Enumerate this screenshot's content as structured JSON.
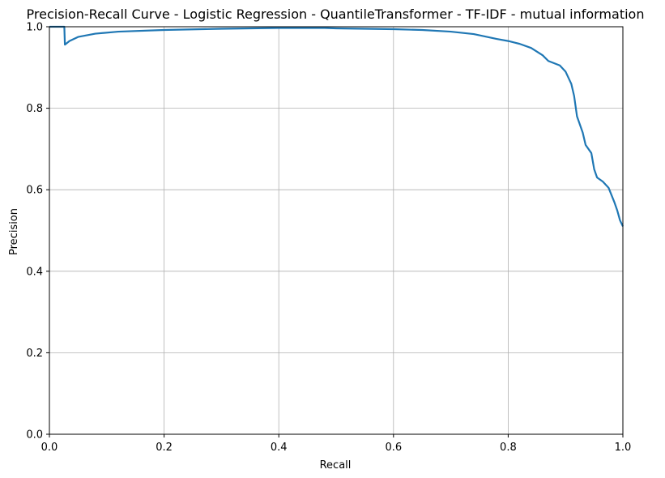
{
  "chart_data": {
    "type": "line",
    "title": "Precision-Recall Curve - Logistic Regression - QuantileTransformer - TF-IDF - mutual information",
    "xlabel": "Recall",
    "ylabel": "Precision",
    "xlim": [
      0.0,
      1.0
    ],
    "ylim": [
      0.0,
      1.0
    ],
    "grid": true,
    "xticks": [
      0.0,
      0.2,
      0.4,
      0.6,
      0.8,
      1.0
    ],
    "yticks": [
      0.0,
      0.2,
      0.4,
      0.6,
      0.8,
      1.0
    ],
    "xtick_labels": [
      "0.0",
      "0.2",
      "0.4",
      "0.6",
      "0.8",
      "1.0"
    ],
    "ytick_labels": [
      "0.0",
      "0.2",
      "0.4",
      "0.6",
      "0.8",
      "1.0"
    ],
    "series": [
      {
        "color": "#1f77b4",
        "points": [
          [
            0.0,
            1.0
          ],
          [
            0.026,
            1.0
          ],
          [
            0.027,
            0.956
          ],
          [
            0.035,
            0.965
          ],
          [
            0.05,
            0.975
          ],
          [
            0.08,
            0.983
          ],
          [
            0.12,
            0.988
          ],
          [
            0.2,
            0.992
          ],
          [
            0.3,
            0.995
          ],
          [
            0.4,
            0.997
          ],
          [
            0.48,
            0.997
          ],
          [
            0.5,
            0.996
          ],
          [
            0.6,
            0.994
          ],
          [
            0.65,
            0.992
          ],
          [
            0.7,
            0.988
          ],
          [
            0.74,
            0.982
          ],
          [
            0.76,
            0.976
          ],
          [
            0.78,
            0.97
          ],
          [
            0.8,
            0.965
          ],
          [
            0.82,
            0.958
          ],
          [
            0.84,
            0.948
          ],
          [
            0.86,
            0.93
          ],
          [
            0.87,
            0.916
          ],
          [
            0.89,
            0.905
          ],
          [
            0.9,
            0.89
          ],
          [
            0.91,
            0.86
          ],
          [
            0.915,
            0.83
          ],
          [
            0.92,
            0.78
          ],
          [
            0.93,
            0.74
          ],
          [
            0.935,
            0.71
          ],
          [
            0.945,
            0.69
          ],
          [
            0.95,
            0.65
          ],
          [
            0.955,
            0.63
          ],
          [
            0.965,
            0.62
          ],
          [
            0.975,
            0.605
          ],
          [
            0.985,
            0.57
          ],
          [
            0.99,
            0.55
          ],
          [
            0.995,
            0.525
          ],
          [
            1.0,
            0.51
          ]
        ]
      }
    ]
  }
}
